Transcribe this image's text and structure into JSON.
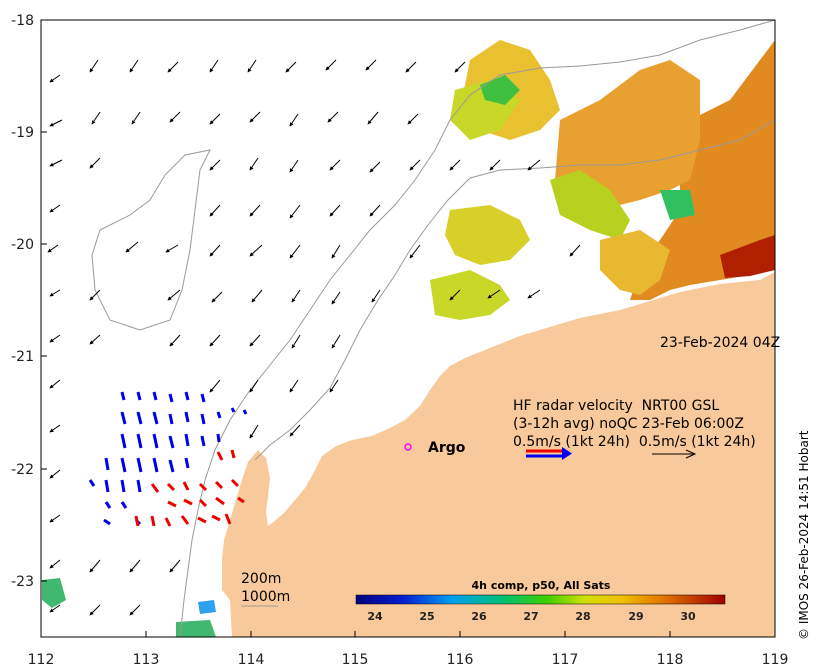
{
  "axes": {
    "x_ticks": [
      "112",
      "113",
      "114",
      "115",
      "116",
      "117",
      "118",
      "119"
    ],
    "y_ticks": [
      "-18",
      "-19",
      "-20",
      "-21",
      "-22",
      "-23"
    ],
    "xlim": [
      112,
      119
    ],
    "ylim": [
      -23.5,
      -18
    ]
  },
  "timestamp": "23-Feb-2024 04Z",
  "legend": {
    "line1": "HF radar velocity  NRT00 GSL",
    "line2": "(3-12h avg) noQC 23-Feb 06:00Z",
    "line3": "0.5m/s (1kt 24h)  0.5m/s (1kt 24h)"
  },
  "argo_label": "Argo",
  "isobaths": {
    "depth1": "200m",
    "depth2": "1000m"
  },
  "colorbar": {
    "title": "4h comp, p50, All Sats",
    "ticks": [
      "24",
      "25",
      "26",
      "27",
      "28",
      "29",
      "30"
    ],
    "range": [
      23.6,
      30.7
    ]
  },
  "credit": "© IMOS 26-Feb-2024 14:51 Hobart",
  "colors": {
    "land": "#f8c99a",
    "radar_blue": "#0000ee",
    "radar_red": "#ee0000",
    "argo": "#ff00ff"
  }
}
